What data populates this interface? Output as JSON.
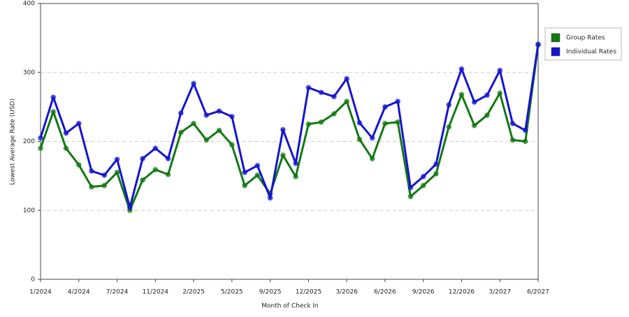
{
  "chart_data": {
    "type": "line",
    "x_label": "Month of Check In",
    "y_label": "Lowest Average Rate (USD)",
    "categories": [
      "1/2024",
      null,
      null,
      "4/2024",
      null,
      null,
      "7/2024",
      null,
      null,
      "11/2024",
      null,
      null,
      "2/2025",
      null,
      null,
      "5/2025",
      null,
      null,
      "9/2025",
      null,
      null,
      "12/2025",
      null,
      null,
      "3/2026",
      null,
      null,
      "6/2026",
      null,
      null,
      "9/2026",
      null,
      null,
      "12/2026",
      null,
      null,
      "3/2027",
      null,
      null,
      "6/2027"
    ],
    "series": [
      {
        "name": "Group Rates",
        "color": "#127812",
        "values": [
          190,
          243,
          190,
          166,
          134,
          136,
          155,
          100,
          144,
          159,
          152,
          213,
          226,
          202,
          216,
          195,
          136,
          151,
          124,
          180,
          149,
          225,
          228,
          240,
          258,
          203,
          175,
          226,
          228,
          120,
          136,
          153,
          221,
          268,
          223,
          238,
          270,
          202,
          200,
          340
        ]
      },
      {
        "name": "Individual Rates",
        "color": "#1414d2",
        "values": [
          205,
          264,
          212,
          226,
          157,
          151,
          174,
          104,
          175,
          190,
          175,
          241,
          284,
          238,
          244,
          236,
          155,
          165,
          118,
          217,
          168,
          278,
          271,
          265,
          291,
          227,
          205,
          250,
          258,
          133,
          149,
          167,
          253,
          305,
          257,
          267,
          303,
          226,
          216,
          341
        ]
      }
    ],
    "ylim": [
      0,
      400
    ],
    "yticks": [
      0,
      100,
      200,
      300,
      400
    ],
    "grid": true,
    "legend": "right"
  }
}
